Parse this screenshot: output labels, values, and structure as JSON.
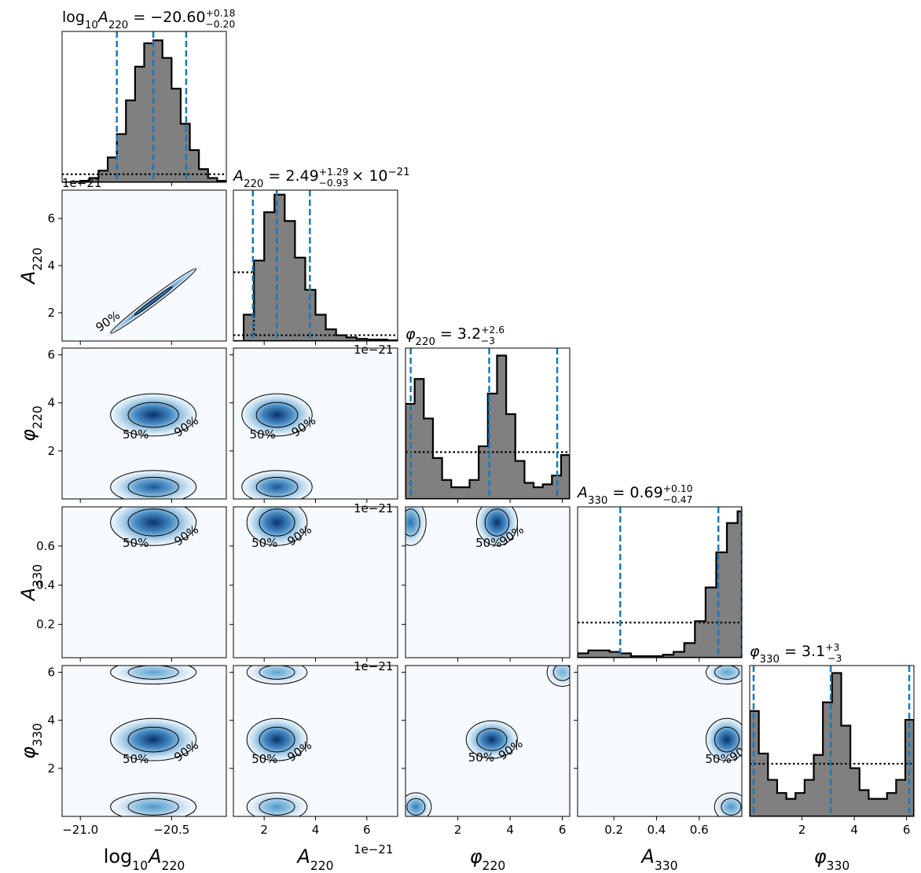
{
  "colors": {
    "hist_fill": "#808080",
    "hist_edge": "#000000",
    "quantile": "#1f77b4",
    "density_low": "#f7fbff",
    "density_high": "#08306b"
  },
  "chart_data": {
    "type": "corner",
    "parameters": [
      {
        "key": "logA220",
        "base": "log",
        "sub": "10",
        "sym": "A",
        "sym_sub": "220",
        "axis_display": "log10A220",
        "range": [
          -21.1,
          -20.2
        ]
      },
      {
        "key": "A220",
        "sym": "A",
        "sym_sub": "220",
        "range": [
          0.8,
          7.2
        ],
        "offset_text": "1e−21"
      },
      {
        "key": "phi220",
        "sym": "φ",
        "sym_sub": "220",
        "range": [
          0,
          6.28
        ]
      },
      {
        "key": "A330",
        "sym": "A",
        "sym_sub": "330",
        "range": [
          0.03,
          0.8
        ]
      },
      {
        "key": "phi330",
        "sym": "φ",
        "sym_sub": "330",
        "range": [
          0,
          6.28
        ]
      }
    ],
    "titles": [
      {
        "lhs": "log10A220 = −20.60",
        "val": "−20.60",
        "up": "+0.18",
        "dn": "−0.20",
        "mult": ""
      },
      {
        "lhs": "A220 = 2.49",
        "val": "2.49",
        "up": "+1.29",
        "dn": "−0.93",
        "mult": "× 10−21"
      },
      {
        "lhs": "φ220 = 3.2",
        "val": "3.2",
        "up": "+2.6",
        "dn": "−3",
        "mult": ""
      },
      {
        "lhs": "A330 = 0.69",
        "val": "0.69",
        "up": "+0.10",
        "dn": "−0.47",
        "mult": ""
      },
      {
        "lhs": "φ330 = 3.1",
        "val": "3.1",
        "up": "+3",
        "dn": "−3",
        "mult": ""
      }
    ],
    "x_ticks": [
      {
        "values": [
          -21.0,
          -20.5
        ],
        "labels": [
          "−21.0",
          "−20.5"
        ]
      },
      {
        "values": [
          2,
          4,
          6
        ],
        "labels": [
          "2",
          "4",
          "6"
        ]
      },
      {
        "values": [
          2,
          4,
          6
        ],
        "labels": [
          "2",
          "4",
          "6"
        ]
      },
      {
        "values": [
          0.2,
          0.4,
          0.6
        ],
        "labels": [
          "0.2",
          "0.4",
          "0.6"
        ]
      },
      {
        "values": [
          2,
          4,
          6
        ],
        "labels": [
          "2",
          "4",
          "6"
        ]
      }
    ],
    "y_ticks": [
      null,
      {
        "values": [
          2,
          4,
          6
        ],
        "labels": [
          "2",
          "4",
          "6"
        ]
      },
      {
        "values": [
          2,
          4,
          6
        ],
        "labels": [
          "2",
          "4",
          "6"
        ]
      },
      {
        "values": [
          0.2,
          0.4,
          0.6
        ],
        "labels": [
          "0.2",
          "0.4",
          "0.6"
        ]
      },
      {
        "values": [
          2,
          4,
          6
        ],
        "labels": [
          "2",
          "4",
          "6"
        ]
      }
    ],
    "x_offset_text": "1e−21",
    "histograms": [
      {
        "quantiles": [
          -20.8,
          -20.6,
          -20.42
        ],
        "peak": 1.0,
        "bins_x": [
          -21.1,
          -21.05,
          -21.0,
          -20.95,
          -20.9,
          -20.85,
          -20.8,
          -20.75,
          -20.7,
          -20.65,
          -20.6,
          -20.55,
          -20.5,
          -20.45,
          -20.4,
          -20.35,
          -20.3,
          -20.25,
          -20.2
        ],
        "bins_y": [
          0.0,
          0.005,
          0.01,
          0.03,
          0.08,
          0.17,
          0.33,
          0.56,
          0.79,
          0.95,
          0.97,
          0.85,
          0.64,
          0.4,
          0.22,
          0.09,
          0.03,
          0.01,
          0.0
        ],
        "prior_y": 0.055
      },
      {
        "quantiles": [
          1.56,
          2.49,
          3.78
        ],
        "peak": 1.0,
        "bins_x": [
          0.8,
          1.2,
          1.6,
          2.0,
          2.4,
          2.8,
          3.2,
          3.6,
          4.0,
          4.4,
          4.8,
          5.2,
          5.6,
          6.0,
          6.4,
          6.8,
          7.2
        ],
        "bins_y": [
          0.0,
          0.18,
          0.55,
          0.88,
          1.0,
          0.82,
          0.57,
          0.35,
          0.18,
          0.08,
          0.04,
          0.025,
          0.015,
          0.01,
          0.01,
          0.005,
          0.0
        ],
        "prior_y": 0.04,
        "prior_step_y": 0.47,
        "prior_step_x": [
          0.8,
          1.6
        ]
      },
      {
        "quantiles": [
          0.2,
          3.2,
          5.8
        ],
        "peak": 1.0,
        "bins_x": [
          0,
          0.35,
          0.7,
          1.05,
          1.4,
          1.75,
          2.1,
          2.45,
          2.8,
          3.15,
          3.5,
          3.85,
          4.2,
          4.55,
          4.9,
          5.25,
          5.6,
          5.95,
          6.28
        ],
        "bins_y": [
          0.65,
          0.82,
          0.55,
          0.28,
          0.13,
          0.08,
          0.08,
          0.13,
          0.36,
          0.72,
          0.98,
          0.58,
          0.26,
          0.11,
          0.08,
          0.1,
          0.16,
          0.3,
          0.0
        ],
        "prior_y": 0.32
      },
      {
        "quantiles": [
          0.23,
          0.69,
          0.8
        ],
        "peak": 1.0,
        "bins_x": [
          0.03,
          0.08,
          0.13,
          0.18,
          0.23,
          0.28,
          0.33,
          0.38,
          0.43,
          0.48,
          0.53,
          0.58,
          0.63,
          0.68,
          0.73,
          0.78,
          0.8
        ],
        "bins_y": [
          0.03,
          0.05,
          0.05,
          0.04,
          0.03,
          0.01,
          0.01,
          0.01,
          0.02,
          0.04,
          0.1,
          0.25,
          0.48,
          0.72,
          0.92,
          1.0,
          0.0
        ],
        "prior_y": 0.24
      },
      {
        "quantiles": [
          0.15,
          3.1,
          6.1
        ],
        "peak": 1.0,
        "bins_x": [
          0,
          0.35,
          0.7,
          1.05,
          1.4,
          1.75,
          2.1,
          2.45,
          2.8,
          3.15,
          3.5,
          3.85,
          4.2,
          4.55,
          4.9,
          5.25,
          5.6,
          5.95,
          6.28
        ],
        "bins_y": [
          0.72,
          0.43,
          0.25,
          0.16,
          0.12,
          0.16,
          0.25,
          0.42,
          0.78,
          0.98,
          0.62,
          0.33,
          0.18,
          0.12,
          0.12,
          0.16,
          0.25,
          0.66,
          0.0
        ],
        "prior_y": 0.36
      }
    ],
    "contour_levels": [
      "50%",
      "90%"
    ],
    "density_blobs": {
      "1,0": [
        {
          "cx": -20.6,
          "cy": 2.5,
          "sx": 0.22,
          "sy": 1.2,
          "w": 0.9,
          "corr": 0.99
        }
      ],
      "2,0": [
        {
          "cx": -20.6,
          "cy": 3.5,
          "sx": 0.12,
          "sy": 0.45,
          "w": 1.0
        },
        {
          "cx": -20.6,
          "cy": 0.5,
          "sx": 0.12,
          "sy": 0.35,
          "w": 0.85
        }
      ],
      "2,1": [
        {
          "cx": 2.5,
          "cy": 3.5,
          "sx": 0.7,
          "sy": 0.45,
          "w": 1.0
        },
        {
          "cx": 2.5,
          "cy": 0.5,
          "sx": 0.7,
          "sy": 0.35,
          "w": 0.85
        }
      ],
      "3,0": [
        {
          "cx": -20.6,
          "cy": 0.72,
          "sx": 0.12,
          "sy": 0.06,
          "w": 1.0
        }
      ],
      "3,1": [
        {
          "cx": 2.5,
          "cy": 0.72,
          "sx": 0.6,
          "sy": 0.06,
          "w": 1.0
        }
      ],
      "3,2": [
        {
          "cx": 3.5,
          "cy": 0.72,
          "sx": 0.4,
          "sy": 0.06,
          "w": 1.0
        },
        {
          "cx": 0.2,
          "cy": 0.72,
          "sx": 0.3,
          "sy": 0.06,
          "w": 0.75
        }
      ],
      "4,0": [
        {
          "cx": -20.6,
          "cy": 3.2,
          "sx": 0.12,
          "sy": 0.45,
          "w": 1.0
        },
        {
          "cx": -20.6,
          "cy": 6.0,
          "sx": 0.12,
          "sy": 0.25,
          "w": 0.55
        },
        {
          "cx": -20.6,
          "cy": 0.4,
          "sx": 0.12,
          "sy": 0.3,
          "w": 0.6
        }
      ],
      "4,1": [
        {
          "cx": 2.5,
          "cy": 3.2,
          "sx": 0.6,
          "sy": 0.45,
          "w": 1.0
        },
        {
          "cx": 2.5,
          "cy": 6.0,
          "sx": 0.6,
          "sy": 0.25,
          "w": 0.55
        },
        {
          "cx": 2.5,
          "cy": 0.4,
          "sx": 0.6,
          "sy": 0.3,
          "w": 0.6
        }
      ],
      "4,2": [
        {
          "cx": 3.3,
          "cy": 3.2,
          "sx": 0.5,
          "sy": 0.4,
          "w": 1.0
        },
        {
          "cx": 0.4,
          "cy": 0.4,
          "sx": 0.3,
          "sy": 0.3,
          "w": 0.7
        },
        {
          "cx": 6.0,
          "cy": 6.0,
          "sx": 0.3,
          "sy": 0.3,
          "w": 0.5
        }
      ],
      "4,3": [
        {
          "cx": 0.73,
          "cy": 3.2,
          "sx": 0.05,
          "sy": 0.45,
          "w": 1.0
        },
        {
          "cx": 0.73,
          "cy": 6.0,
          "sx": 0.05,
          "sy": 0.25,
          "w": 0.55
        },
        {
          "cx": 0.75,
          "cy": 0.4,
          "sx": 0.04,
          "sy": 0.3,
          "w": 0.6
        }
      ]
    }
  }
}
